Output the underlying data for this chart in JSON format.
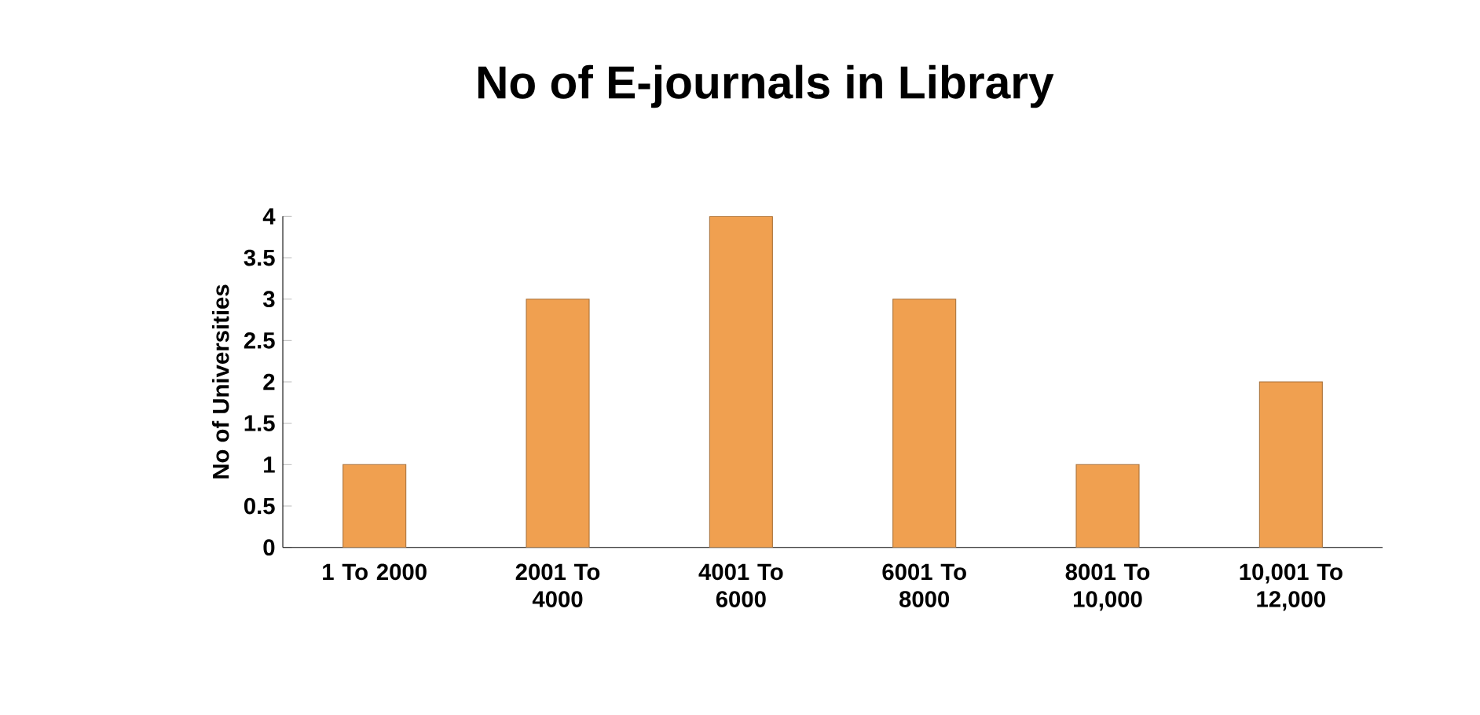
{
  "chart_data": {
    "type": "bar",
    "title": "No of E-journals in Library",
    "ylabel": "No of Universities",
    "categories": [
      "1 To 2000",
      "2001 To 4000",
      "4001 To 6000",
      "6001 To 8000",
      "8001 To 10,000",
      "10,001 To 12,000"
    ],
    "values": [
      1,
      3,
      4,
      3,
      1,
      2
    ],
    "color": "#f0a050",
    "ylim": [
      0,
      4
    ],
    "yticks": [
      0,
      0.5,
      1,
      1.5,
      2,
      2.5,
      3,
      3.5,
      4
    ],
    "grid": false
  }
}
